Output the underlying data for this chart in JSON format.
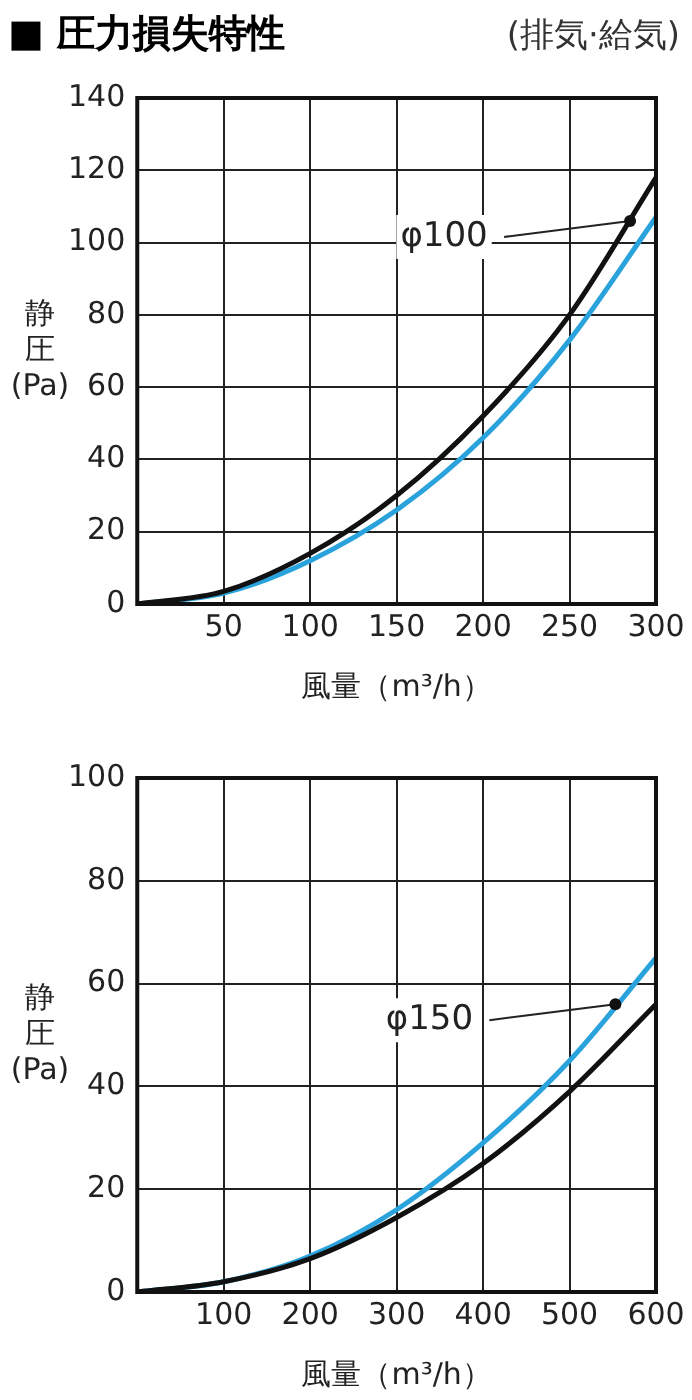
{
  "chart_data": [
    {
      "type": "line",
      "title": "■ 圧力損失特性",
      "subtitle": "(排気·給気)",
      "xlabel": "風量（m³/h）",
      "ylabel": "静圧(Pa)",
      "x": [
        0,
        50,
        100,
        150,
        200,
        250,
        300
      ],
      "xlim": [
        0,
        300
      ],
      "xticks": [
        {
          "value": 0,
          "label": null
        },
        50,
        100,
        150,
        200,
        250,
        300
      ],
      "ylim": [
        0,
        140
      ],
      "yticks": [
        0,
        20,
        40,
        60,
        80,
        100,
        120,
        140
      ],
      "grid": true,
      "marker": "none",
      "line_style": "solid",
      "series": [
        {
          "color": "#111111",
          "values": [
            0,
            3.5,
            14,
            30,
            52,
            80,
            118
          ]
        },
        {
          "color": "#2aa3dc",
          "values": [
            0,
            3,
            12,
            26,
            46,
            73,
            107
          ]
        }
      ],
      "annotations": [
        {
          "text": "φ100",
          "x": 285,
          "y": 106
        }
      ]
    },
    {
      "type": "line",
      "xlabel": "風量（m³/h）",
      "ylabel": "静圧(Pa)",
      "x": [
        0,
        100,
        200,
        300,
        400,
        500,
        600
      ],
      "xlim": [
        0,
        600
      ],
      "xticks": [
        {
          "value": 0,
          "label": null
        },
        100,
        200,
        300,
        400,
        500,
        600
      ],
      "ylim": [
        0,
        100
      ],
      "yticks": [
        0,
        20,
        40,
        60,
        80,
        100
      ],
      "grid": true,
      "marker": "none",
      "line_style": "solid",
      "series": [
        {
          "color": "#111111",
          "values": [
            0,
            2,
            6.5,
            14.5,
            25,
            39,
            56
          ]
        },
        {
          "color": "#2aa3dc",
          "values": [
            0,
            2,
            7,
            16,
            29,
            45,
            65
          ]
        }
      ],
      "annotations": [
        {
          "text": "φ150",
          "x": 553,
          "y": 56
        }
      ]
    }
  ]
}
